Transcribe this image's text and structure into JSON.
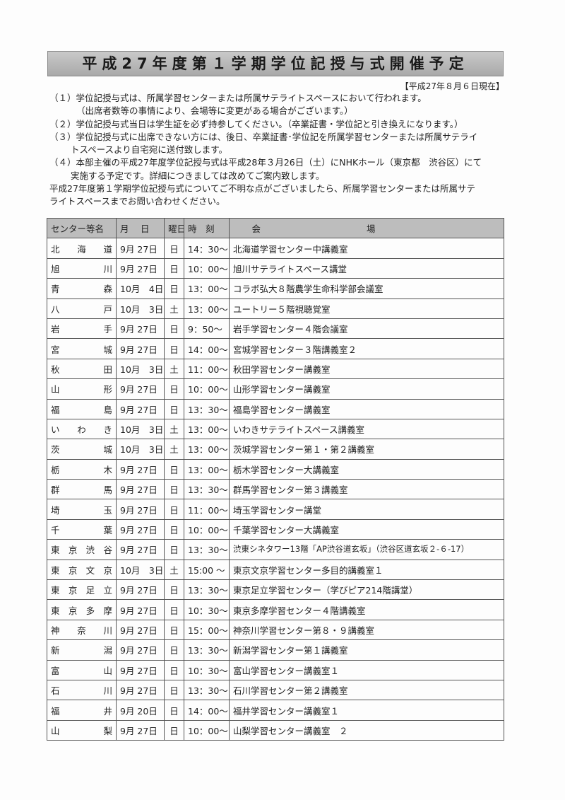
{
  "title": "平成27年度第１学期学位記授与式開催予定",
  "as_of": "【平成27年８月６日現在】",
  "notes": [
    "（１）学位記授与式は、所属学習センターまたは所属サテライトスペースにおいて行われます。",
    "（出席者数等の事情により、会場等に変更がある場合がございます。）",
    "（２）学位記授与式当日は学生証を必ず持参してください。（卒業証書・学位記と引き換えになります。）",
    "（３）学位記授与式に出席できない方には、後日、卒業証書･学位記を所属学習センターまたは所属サテライ",
    "トスペースより自宅宛に送付致します。",
    "（４）本部主催の平成27年度学位記授与式は平成28年３月26日（土）にNHKホール（東京都　渋谷区）にて",
    "実施する予定です。詳細につきましては改めてご案内致します。",
    "平成27年度第１学期学位記授与式についてご不明な点がございましたら、所属学習センターまたは所属サテ",
    "ライトスペースまでお問い合わせください。"
  ],
  "table": {
    "headers": [
      "センター等名",
      "月　 日",
      "曜日",
      "時　刻",
      "会場"
    ],
    "rows": [
      [
        "北海道",
        "9月 27日",
        "日",
        "14：30～",
        "北海道学習センター中講義室"
      ],
      [
        "旭川",
        "9月 27日",
        "日",
        "10：00～",
        "旭川サテライトスペース講堂"
      ],
      [
        "青森",
        "10月　4日",
        "日",
        "13：00～",
        "コラボ弘大８階農学生命科学部会議室"
      ],
      [
        "八戸",
        "10月　3日",
        "土",
        "13：00～",
        "ユートリー５階視聴覚室"
      ],
      [
        "岩手",
        "9月 27日",
        "日",
        "9：50～",
        "岩手学習センター４階会議室"
      ],
      [
        "宮城",
        "9月 27日",
        "日",
        "14：00～",
        "宮城学習センター３階講義室２"
      ],
      [
        "秋田",
        "10月　3日",
        "土",
        "11：00～",
        "秋田学習センター講義室"
      ],
      [
        "山形",
        "9月 27日",
        "日",
        "10：00～",
        "山形学習センター講義室"
      ],
      [
        "福島",
        "9月 27日",
        "日",
        "13：30～",
        "福島学習センター講義室"
      ],
      [
        "いわき",
        "10月　3日",
        "土",
        "13：00～",
        "いわきサテライトスペース講義室"
      ],
      [
        "茨城",
        "10月　3日",
        "土",
        "13：00～",
        "茨城学習センター第１・第２講義室"
      ],
      [
        "栃木",
        "9月 27日",
        "日",
        "13：00～",
        "栃木学習センター大講義室"
      ],
      [
        "群馬",
        "9月 27日",
        "日",
        "13：30～",
        "群馬学習センター第３講義室"
      ],
      [
        "埼玉",
        "9月 27日",
        "日",
        "11：00～",
        "埼玉学習センター講堂"
      ],
      [
        "千葉",
        "9月 27日",
        "日",
        "10：00～",
        "千葉学習センター大講義室"
      ],
      [
        "東京渋谷",
        "9月 27日",
        "日",
        "13：30～",
        "渋東シネタワー13階「AP渋谷道玄坂」（渋谷区道玄坂２-６-17）"
      ],
      [
        "東京文京",
        "10月　3日",
        "土",
        "15:00 ～",
        "東京文京学習センター多目的講義室１"
      ],
      [
        "東京足立",
        "9月 27日",
        "日",
        "13：30～",
        "東京足立学習センター（学びピア214階講堂）"
      ],
      [
        "東京多摩",
        "9月 27日",
        "日",
        "10：30～",
        "東京多摩学習センター４階講義室"
      ],
      [
        "神奈川",
        "9月 27日",
        "日",
        "15：00～",
        "神奈川学習センター第８・９講義室"
      ],
      [
        "新潟",
        "9月 27日",
        "日",
        "13：30～",
        "新潟学習センター第１講義室"
      ],
      [
        "富山",
        "9月 27日",
        "日",
        "10：30～",
        "富山学習センター講義室１"
      ],
      [
        "石川",
        "9月 27日",
        "日",
        "13：30～",
        "石川学習センター第２講義室"
      ],
      [
        "福井",
        "9月 20日",
        "日",
        "14：00～",
        "福井学習センター講義室１"
      ],
      [
        "山梨",
        "9月 27日",
        "日",
        "10：00～",
        "山梨学習センター講義室　２"
      ]
    ]
  }
}
